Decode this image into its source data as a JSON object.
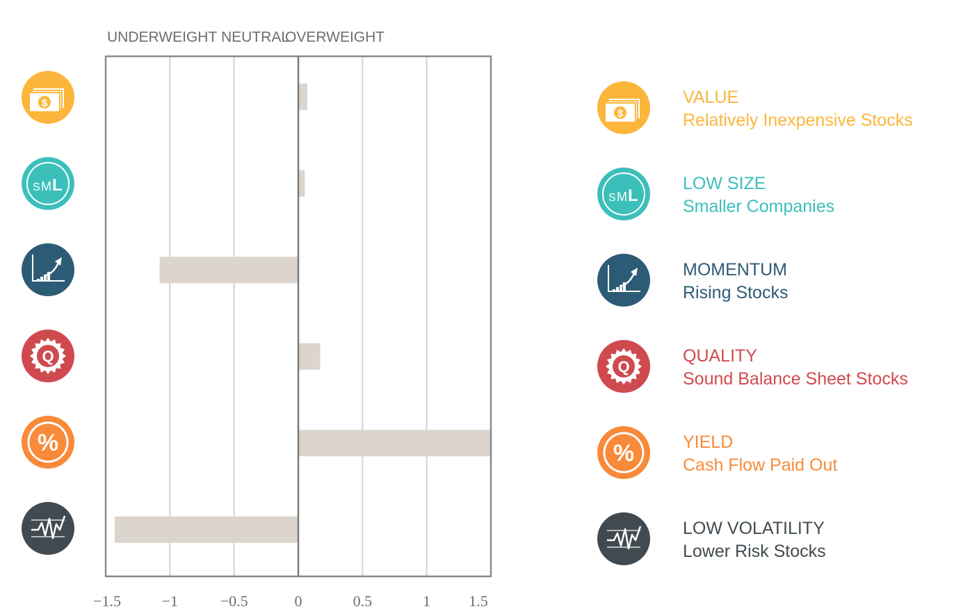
{
  "header": {
    "underweight": "UNDERWEIGHT",
    "neutral": "NEUTRAL",
    "overweight": "OVERWEIGHT"
  },
  "chart_data": {
    "type": "bar",
    "orientation": "horizontal",
    "categories": [
      "VALUE",
      "LOW SIZE",
      "MOMENTUM",
      "QUALITY",
      "YIELD",
      "LOW VOLATILITY"
    ],
    "values": [
      0.07,
      0.05,
      -1.08,
      0.17,
      1.5,
      -1.43
    ],
    "xlim": [
      -1.5,
      1.5
    ],
    "ticks": [
      "-1.5",
      "-1",
      "-0.5",
      "0",
      "0.5",
      "1",
      "1.5"
    ],
    "tick_values": [
      -1.5,
      -1,
      -0.5,
      0,
      0.5,
      1,
      1.5
    ],
    "grid": true,
    "bar_color": "#dbd5ce",
    "legend_placement": "right"
  },
  "factors": [
    {
      "name": "VALUE",
      "desc": "Relatively Inexpensive Stocks",
      "color": "#fbb63b",
      "icon": "money-icon"
    },
    {
      "name": "LOW SIZE",
      "desc": "Smaller Companies",
      "color": "#3cbfbb",
      "icon": "sml-icon"
    },
    {
      "name": "MOMENTUM",
      "desc": "Rising Stocks",
      "color": "#2d5b76",
      "icon": "rising-chart-icon"
    },
    {
      "name": "QUALITY",
      "desc": "Sound Balance Sheet Stocks",
      "color": "#cf4a4f",
      "icon": "quality-seal-icon"
    },
    {
      "name": "YIELD",
      "desc": "Cash Flow Paid Out",
      "color": "#f88a3a",
      "icon": "percent-icon"
    },
    {
      "name": "LOW VOLATILITY",
      "desc": "Lower Risk Stocks",
      "color": "#414a50",
      "icon": "volatility-icon"
    }
  ],
  "icon_labels": {
    "sml": "SML",
    "quality": "Q",
    "percent": "%",
    "dollar": "$"
  }
}
